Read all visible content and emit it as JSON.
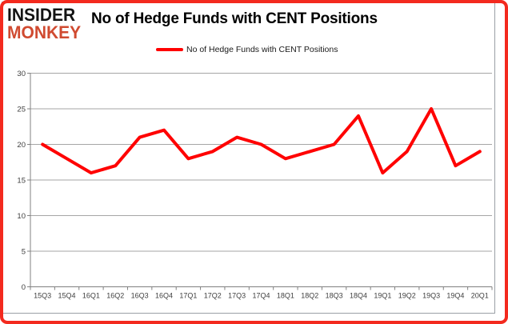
{
  "logo": {
    "line1": "INSIDER",
    "line2": "MONKEY",
    "line2_color": "#d04a30"
  },
  "title": "No of Hedge Funds with CENT Positions",
  "legend": {
    "label": "No of Hedge Funds with CENT Positions",
    "swatch_color": "#ff0000"
  },
  "frame": {
    "highlight_color": "#f32a1e"
  },
  "chart_data": {
    "type": "line",
    "title": "No of Hedge Funds with CENT Positions",
    "categories": [
      "15Q3",
      "15Q4",
      "16Q1",
      "16Q2",
      "16Q3",
      "16Q4",
      "17Q1",
      "17Q2",
      "17Q3",
      "17Q4",
      "18Q1",
      "18Q2",
      "18Q3",
      "18Q4",
      "19Q1",
      "19Q2",
      "19Q3",
      "19Q4",
      "20Q1"
    ],
    "series": [
      {
        "name": "No of Hedge Funds with CENT Positions",
        "values": [
          20,
          18,
          16,
          17,
          21,
          22,
          18,
          19,
          21,
          20,
          18,
          19,
          20,
          24,
          16,
          19,
          25,
          17,
          19
        ],
        "color": "#ff0000"
      }
    ],
    "xlabel": "",
    "ylabel": "",
    "ylim": [
      0,
      30
    ],
    "yticks": [
      0,
      5,
      10,
      15,
      20,
      25,
      30
    ],
    "grid": true,
    "grid_color": "#a6a6a6",
    "axis_color": "#808080",
    "tick_label_color": "#3f3f3f",
    "legend_position": "top"
  }
}
